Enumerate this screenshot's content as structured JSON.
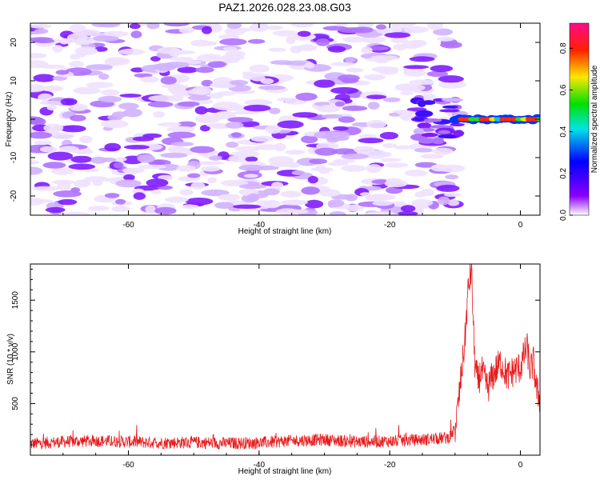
{
  "title": "PAZ1.2026.028.23.08.G03",
  "chart_data": [
    {
      "type": "heatmap",
      "xlabel": "Height of straight line (km)",
      "ylabel": "Frequency (Hz)",
      "xlim": [
        -75,
        3
      ],
      "ylim": [
        -25,
        25
      ],
      "xticks": [
        -60,
        -40,
        -20,
        0
      ],
      "xtick_labels": [
        "-60",
        "-40",
        "-20",
        "0"
      ],
      "yticks": [
        -20,
        -10,
        0,
        10,
        20
      ],
      "ytick_labels": [
        "-20",
        "-10",
        "0",
        "10",
        "20"
      ],
      "colorbar": {
        "label": "Normalized spectral amplitude",
        "range": [
          0,
          0.92
        ],
        "ticks": [
          0,
          0.2,
          0.4,
          0.6,
          0.8
        ],
        "tick_labels": [
          "0.0",
          "0.2",
          "0.4",
          "0.6",
          "0.8"
        ]
      },
      "noise_region": {
        "x_range": [
          -75,
          -10
        ],
        "amplitude_max": 0.25
      },
      "signal_region": {
        "x_range": [
          -10,
          3
        ],
        "frequency": 0,
        "amplitude_max": 0.9
      }
    },
    {
      "type": "line",
      "xlabel": "Height of straight line (km)",
      "ylabel": "SNR (10 * v/v)",
      "xlim": [
        -75,
        3
      ],
      "ylim": [
        0,
        1850
      ],
      "xticks": [
        -60,
        -40,
        -20,
        0
      ],
      "xtick_labels": [
        "-60",
        "-40",
        "-20",
        "0"
      ],
      "yticks": [
        500,
        1000,
        1500
      ],
      "ytick_labels": [
        "500",
        "1000",
        "1500"
      ],
      "color": "#e8191b",
      "series": [
        {
          "name": "SNR",
          "x": [
            -75,
            -70,
            -65,
            -60,
            -55,
            -50,
            -45,
            -40,
            -35,
            -30,
            -25,
            -20,
            -15,
            -11,
            -10,
            -9.5,
            -9,
            -8.5,
            -8,
            -7.5,
            -7,
            -6.5,
            -6,
            -5,
            -4,
            -3,
            -2,
            -1,
            0,
            1,
            1.5,
            2,
            2.5,
            3
          ],
          "values": [
            110,
            130,
            140,
            130,
            120,
            125,
            115,
            120,
            140,
            150,
            130,
            135,
            150,
            170,
            250,
            500,
            800,
            1100,
            1600,
            1800,
            900,
            700,
            820,
            650,
            800,
            900,
            760,
            820,
            850,
            1050,
            820,
            900,
            620,
            550
          ]
        }
      ]
    }
  ]
}
